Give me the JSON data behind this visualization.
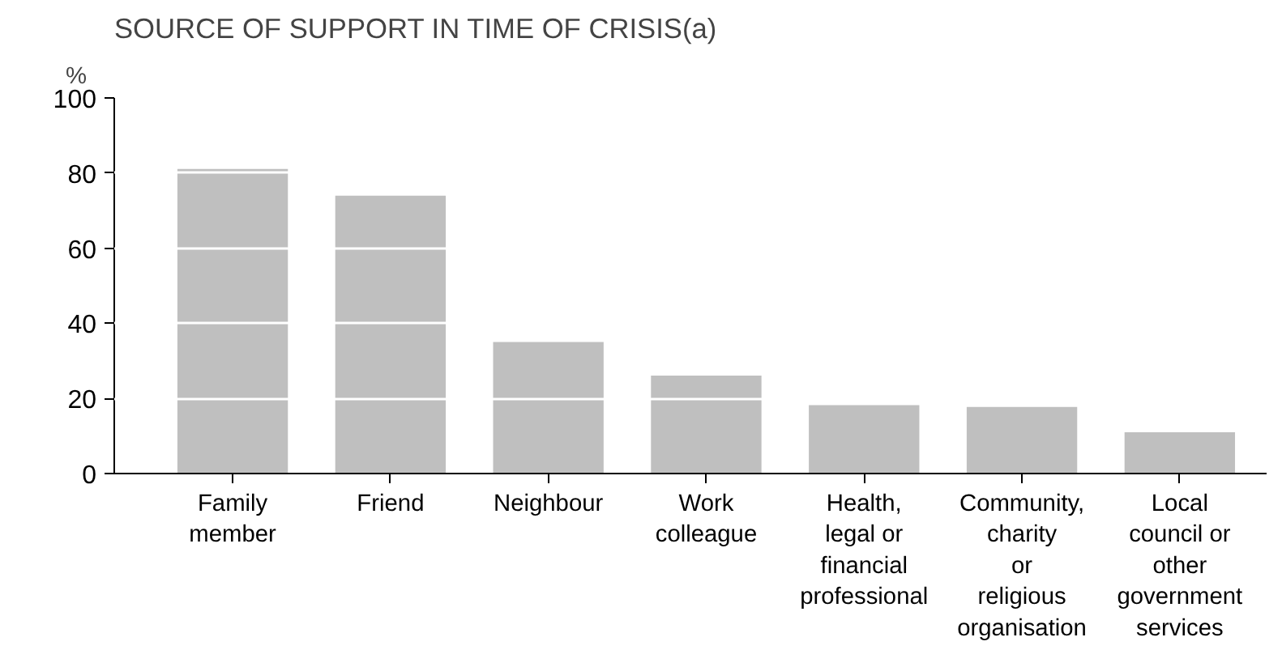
{
  "chart_data": {
    "type": "bar",
    "title": "SOURCE OF SUPPORT IN TIME OF CRISIS(a)",
    "ylabel": "%",
    "categories": [
      "Family\nmember",
      "Friend",
      "Neighbour",
      "Work\ncolleague",
      "Health,\nlegal or\nfinancial\nprofessional",
      "Community,\ncharity\nor\nreligious\norganisation",
      "Local\ncouncil or\nother\ngovernment\nservices"
    ],
    "values": [
      81.1,
      74.0,
      35.0,
      26.1,
      18.2,
      17.7,
      11.0
    ],
    "color": "#bfbfbf",
    "ylim": [
      0,
      100
    ],
    "yticks": [
      0,
      20,
      40,
      60,
      80,
      100
    ],
    "grid": "y"
  }
}
